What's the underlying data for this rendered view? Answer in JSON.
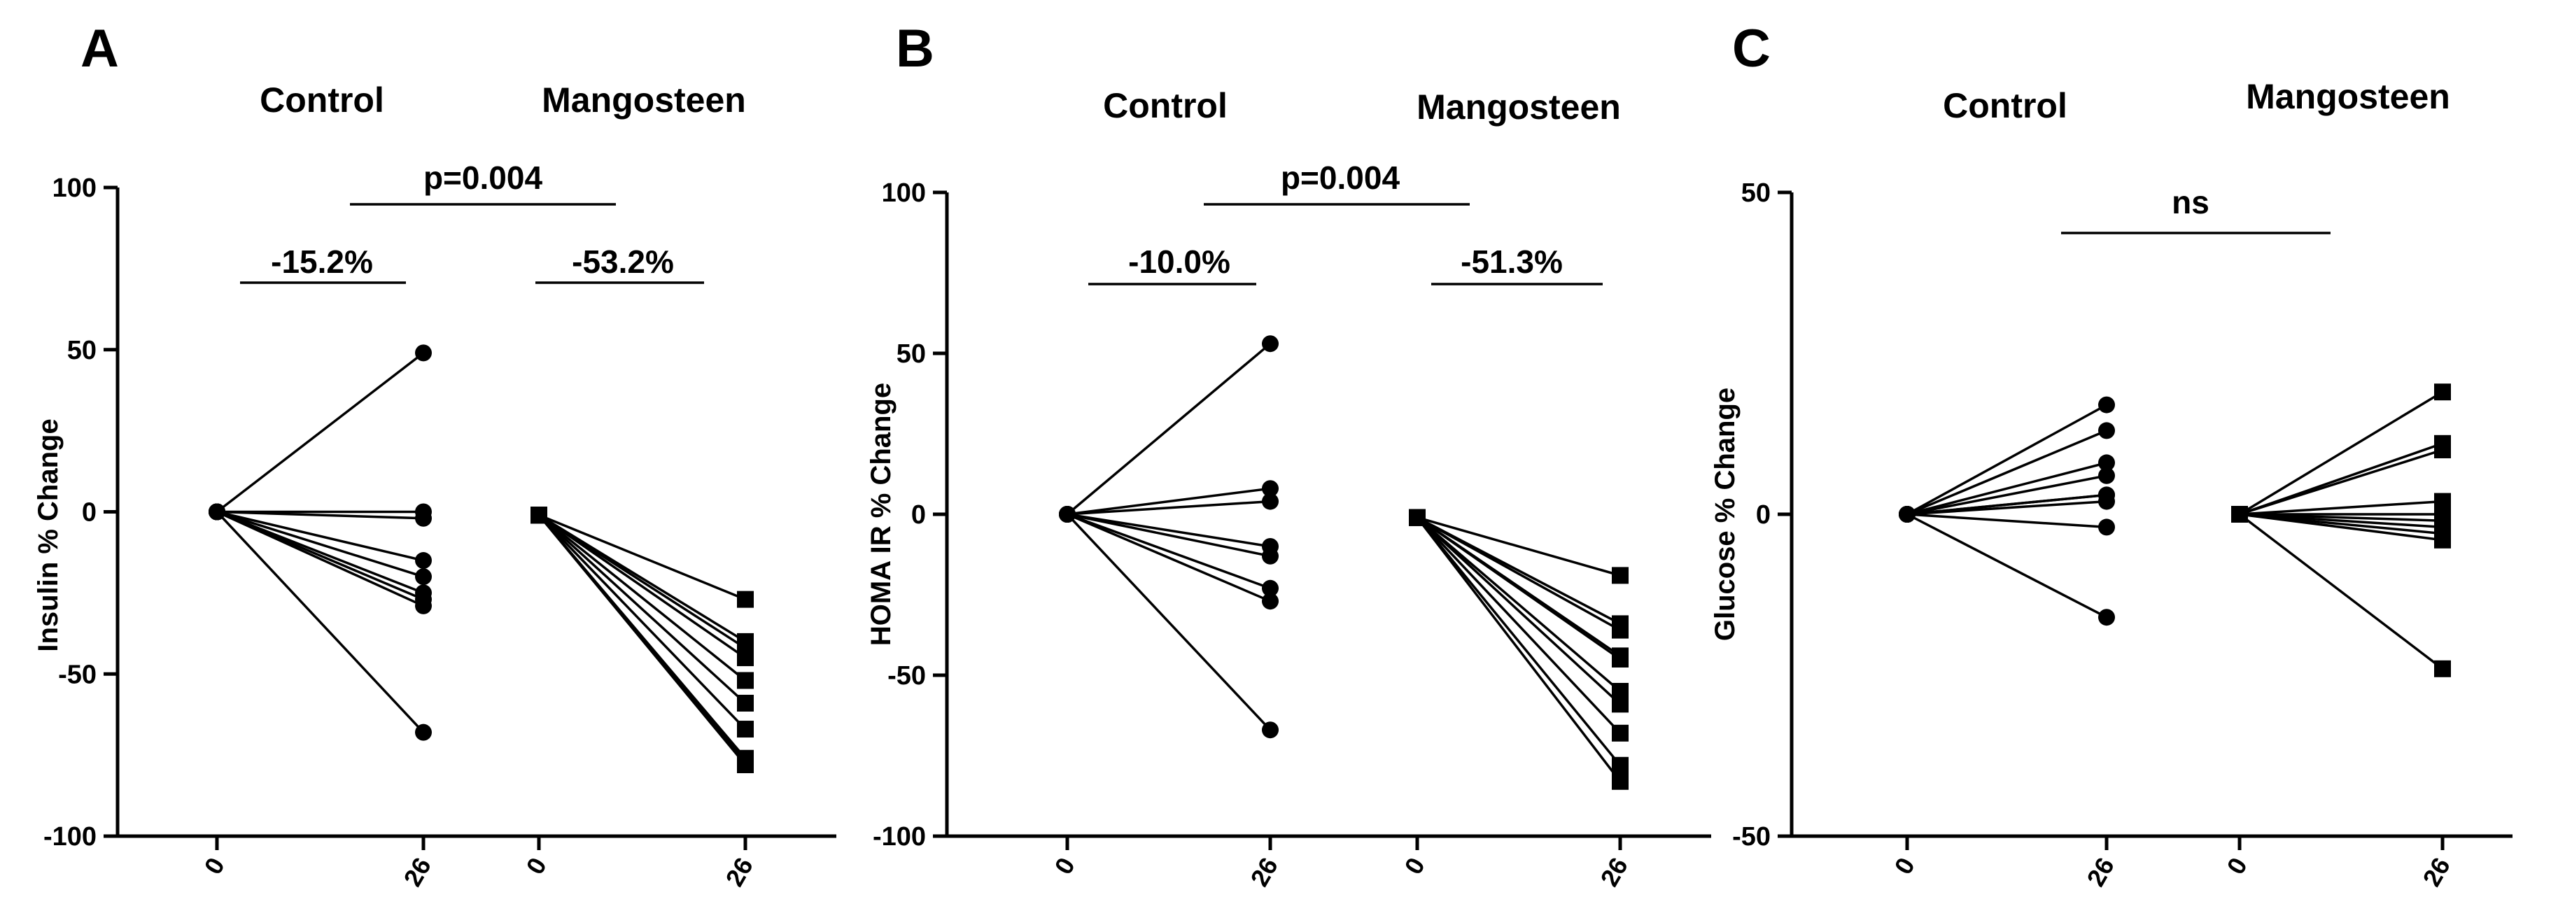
{
  "chart_data": [
    {
      "type": "line",
      "panel": "A",
      "ylabel": "Insulin % Change",
      "ylim": [
        -100,
        100
      ],
      "yticks": [
        100,
        50,
        0,
        -50,
        -100
      ],
      "xtick_labels": [
        "0",
        "26",
        "0",
        "26"
      ],
      "groups": [
        {
          "name": "Control",
          "marker": "circle",
          "start": [
            0,
            0,
            0,
            0,
            0,
            0,
            0,
            0,
            0
          ],
          "end": [
            49,
            0,
            -2,
            -15,
            -20,
            -25,
            -27,
            -29,
            -68
          ]
        },
        {
          "name": "Mangosteen",
          "marker": "square",
          "start": [
            -1,
            -1,
            -1,
            -1,
            -1,
            -1,
            -1,
            -1,
            -1,
            -1
          ],
          "end": [
            -27,
            -40,
            -42,
            -45,
            -52,
            -59,
            -67,
            -76,
            -77,
            -78
          ]
        }
      ],
      "annotations": {
        "overall": "p=0.004",
        "control_change": "-15.2%",
        "treatment_change": "-53.2%"
      }
    },
    {
      "type": "line",
      "panel": "B",
      "ylabel": "HOMA IR % Change",
      "ylim": [
        -100,
        100
      ],
      "yticks": [
        100,
        50,
        0,
        -50,
        -100
      ],
      "xtick_labels": [
        "0",
        "26",
        "0",
        "26"
      ],
      "groups": [
        {
          "name": "Control",
          "marker": "circle",
          "start": [
            0,
            0,
            0,
            0,
            0,
            0,
            0,
            0
          ],
          "end": [
            53,
            8,
            4,
            -10,
            -13,
            -23,
            -27,
            -67
          ]
        },
        {
          "name": "Mangosteen",
          "marker": "square",
          "start": [
            -1,
            -1,
            -1,
            -1,
            -1,
            -1,
            -1,
            -1,
            -1,
            -1
          ],
          "end": [
            -19,
            -34,
            -36,
            -44,
            -55,
            -59,
            -68,
            -78,
            -83,
            -45
          ]
        }
      ],
      "annotations": {
        "overall": "p=0.004",
        "control_change": "-10.0%",
        "treatment_change": "-51.3%"
      }
    },
    {
      "type": "line",
      "panel": "C",
      "ylabel": "Glucose % Change",
      "ylim": [
        -50,
        50
      ],
      "yticks": [
        50,
        0,
        -50
      ],
      "xtick_labels": [
        "0",
        "26",
        "0",
        "26"
      ],
      "groups": [
        {
          "name": "Control",
          "marker": "circle",
          "start": [
            0,
            0,
            0,
            0,
            0,
            0,
            0,
            0,
            0
          ],
          "end": [
            17,
            13,
            8,
            6,
            3,
            2,
            3,
            -2,
            -16
          ]
        },
        {
          "name": "Mangosteen",
          "marker": "square",
          "start": [
            0,
            0,
            0,
            0,
            0,
            0,
            0,
            0,
            0,
            0
          ],
          "end": [
            19,
            11,
            10,
            2,
            0,
            -1,
            -2,
            -3,
            -4,
            -24
          ]
        }
      ],
      "annotations": {
        "overall": "ns"
      }
    }
  ]
}
